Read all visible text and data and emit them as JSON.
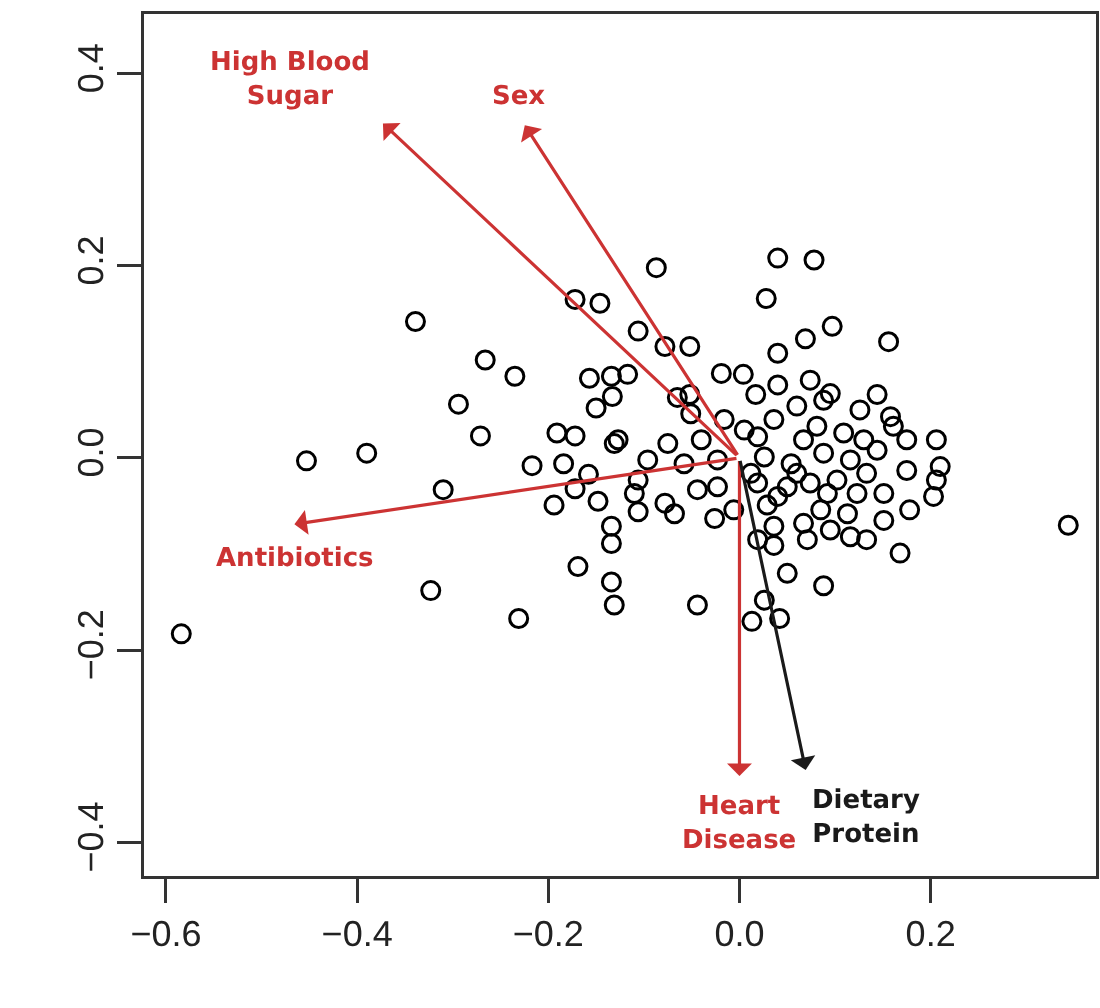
{
  "chart_data": {
    "type": "scatter",
    "marker": "circle",
    "grid": false,
    "color": "#000000",
    "xlim": [
      -0.623,
      0.373
    ],
    "ylim": [
      -0.435,
      0.462
    ],
    "xticks": [
      {
        "value": -0.6,
        "label": "−0.6"
      },
      {
        "value": -0.4,
        "label": "−0.4"
      },
      {
        "value": -0.2,
        "label": "−0.2"
      },
      {
        "value": 0,
        "label": "0.0"
      },
      {
        "value": 0.2,
        "label": "0.2"
      }
    ],
    "yticks": [
      {
        "value": -0.4,
        "label": "−0.4"
      },
      {
        "value": -0.2,
        "label": "−0.2"
      },
      {
        "value": 0,
        "label": "0.0"
      },
      {
        "value": 0.2,
        "label": "0.2"
      },
      {
        "value": 0.4,
        "label": "0.4"
      }
    ],
    "x": [
      -0.172,
      -0.146,
      -0.339,
      -0.266,
      -0.235,
      -0.157,
      -0.134,
      -0.294,
      -0.15,
      -0.271,
      -0.191,
      -0.172,
      -0.453,
      -0.39,
      -0.217,
      -0.184,
      -0.158,
      -0.31,
      -0.172,
      -0.194,
      -0.148,
      -0.131,
      -0.134,
      -0.134,
      -0.169,
      -0.323,
      -0.231,
      -0.134,
      -0.131,
      -0.584,
      -0.087,
      0.04,
      0.078,
      0.028,
      -0.106,
      -0.078,
      -0.052,
      0.097,
      0.069,
      0.156,
      0.04,
      -0.019,
      0.004,
      -0.117,
      -0.133,
      -0.065,
      -0.052,
      0.017,
      0.04,
      0.074,
      0.095,
      0.144,
      0.126,
      0.158,
      -0.051,
      -0.016,
      0.005,
      0.06,
      0.036,
      0.081,
      0.109,
      0.206,
      0.175,
      0.161,
      -0.127,
      -0.075,
      -0.04,
      -0.096,
      -0.058,
      -0.023,
      0.026,
      0.054,
      0.088,
      0.116,
      0.144,
      0.175,
      0.21,
      0.206,
      0.203,
      0.178,
      0.151,
      0.151,
      0.133,
      0.102,
      0.074,
      0.05,
      0.019,
      -0.044,
      -0.023,
      -0.106,
      -0.11,
      -0.078,
      -0.106,
      -0.068,
      -0.026,
      -0.006,
      0.029,
      0.085,
      0.113,
      0.036,
      0.067,
      0.095,
      0.116,
      0.133,
      0.071,
      0.019,
      0.036,
      0.168,
      0.344,
      0.05,
      0.088,
      -0.044,
      0.026,
      0.013,
      0.042,
      0.019,
      0.067,
      0.13,
      0.012,
      0.06,
      0.04,
      0.123,
      0.092,
      0.088
    ],
    "values": [
      0.165,
      0.161,
      0.142,
      0.102,
      0.085,
      0.083,
      0.085,
      0.056,
      0.052,
      0.023,
      0.026,
      0.023,
      -0.003,
      0.005,
      -0.008,
      -0.006,
      -0.017,
      -0.033,
      -0.032,
      -0.049,
      -0.045,
      0.015,
      -0.071,
      -0.089,
      -0.113,
      -0.138,
      -0.167,
      -0.129,
      -0.153,
      -0.183,
      0.198,
      0.208,
      0.206,
      0.166,
      0.132,
      0.116,
      0.116,
      0.137,
      0.124,
      0.121,
      0.109,
      0.088,
      0.087,
      0.087,
      0.064,
      0.063,
      0.066,
      0.066,
      0.076,
      0.081,
      0.067,
      0.066,
      0.05,
      0.043,
      0.046,
      0.04,
      0.029,
      0.054,
      0.04,
      0.033,
      0.026,
      0.019,
      0.019,
      0.033,
      0.019,
      0.015,
      0.019,
      -0.002,
      -0.006,
      -0.002,
      0.001,
      -0.006,
      0.005,
      -0.002,
      0.008,
      -0.013,
      -0.009,
      -0.023,
      -0.04,
      -0.054,
      -0.037,
      -0.065,
      -0.016,
      -0.023,
      -0.026,
      -0.03,
      -0.026,
      -0.033,
      -0.03,
      -0.023,
      -0.037,
      -0.047,
      -0.056,
      -0.058,
      -0.063,
      -0.054,
      -0.049,
      -0.054,
      -0.058,
      -0.071,
      -0.068,
      -0.075,
      -0.082,
      -0.085,
      -0.085,
      -0.085,
      -0.091,
      -0.099,
      -0.07,
      -0.12,
      -0.133,
      -0.153,
      -0.148,
      -0.17,
      -0.167,
      0.022,
      0.019,
      0.019,
      -0.016,
      -0.016,
      -0.04,
      -0.037,
      -0.037,
      0.06
    ],
    "annotations": [
      "High Blood Sugar",
      "Sex",
      "Antibiotics",
      "Heart Disease",
      "Dietary Protein"
    ]
  }
}
